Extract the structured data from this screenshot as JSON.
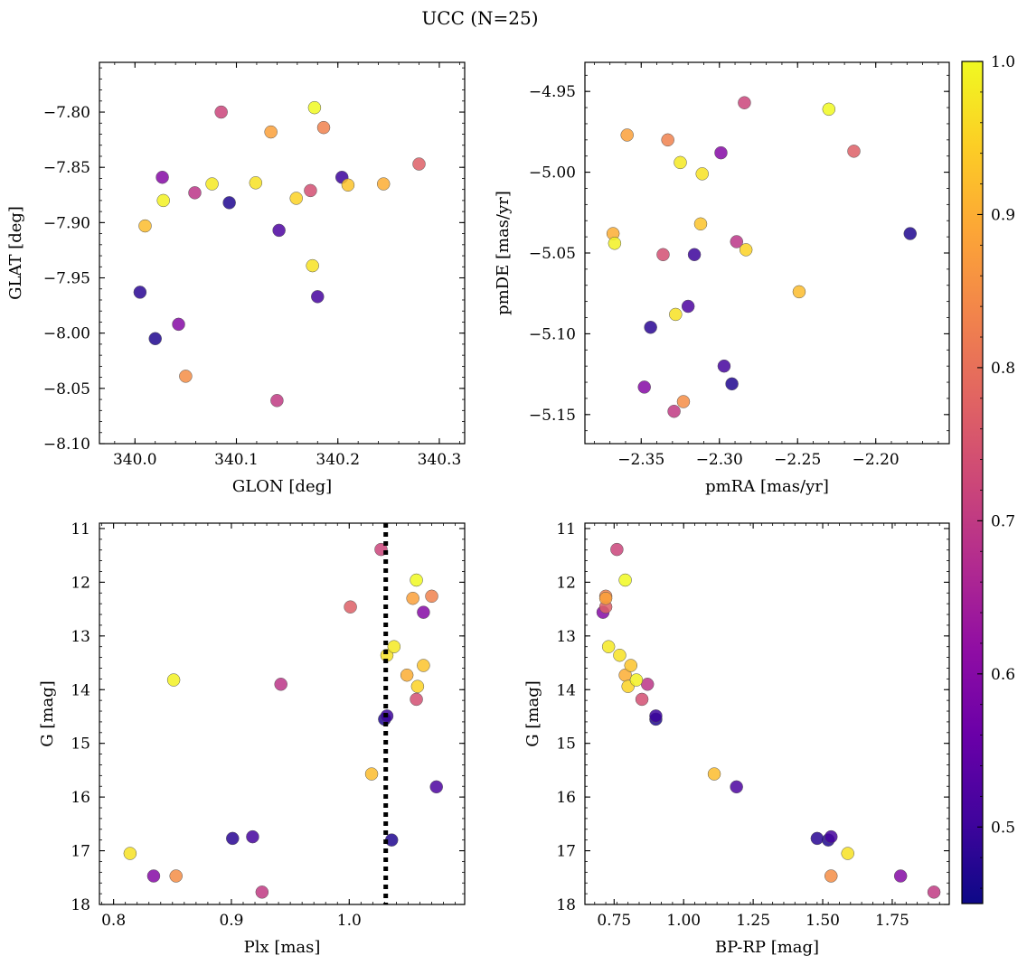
{
  "figure": {
    "title": "UCC (N=25)",
    "colormap": [
      "#0d0887",
      "#41049d",
      "#6a00a8",
      "#8f0da4",
      "#b12a90",
      "#cc4778",
      "#e16462",
      "#f2844b",
      "#fca636",
      "#fcce25",
      "#f0f921"
    ],
    "colorbar": {
      "range": [
        0.45,
        1.0
      ],
      "ticks": [
        "0.5",
        "0.6",
        "0.7",
        "0.8",
        "0.9",
        "1.0"
      ]
    }
  },
  "chart_data": [
    {
      "type": "scatter",
      "name": "glon-glat",
      "xlabel": "GLON [deg]",
      "ylabel": "GLAT [deg]",
      "xlim": [
        339.965,
        340.325
      ],
      "ylim": [
        -8.1,
        -7.755
      ],
      "xticks": [
        "340.0",
        "340.1",
        "340.2",
        "340.3"
      ],
      "yticks": [
        "-7.80",
        "-7.85",
        "-7.90",
        "-7.95",
        "-8.00",
        "-8.05",
        "-8.10"
      ],
      "x": [
        340.085,
        340.177,
        340.134,
        340.186,
        340.28,
        340.027,
        340.076,
        340.119,
        340.21,
        340.245,
        340.028,
        340.059,
        340.159,
        340.173,
        340.204,
        340.093,
        340.01,
        340.142,
        340.175,
        340.005,
        340.18,
        340.02,
        340.043,
        340.05,
        340.14
      ],
      "y": [
        -7.8,
        -7.796,
        -7.818,
        -7.814,
        -7.847,
        -7.859,
        -7.865,
        -7.864,
        -7.866,
        -7.865,
        -7.88,
        -7.873,
        -7.878,
        -7.871,
        -7.859,
        -7.882,
        -7.903,
        -7.907,
        -7.939,
        -7.963,
        -7.967,
        -8.005,
        -7.992,
        -8.039,
        -8.061
      ]
    },
    {
      "type": "scatter",
      "name": "pm",
      "xlabel": "pmRA [mas/yr]",
      "ylabel": "pmDE [mas/yr]",
      "xlim": [
        -2.386,
        -2.153
      ],
      "ylim": [
        -5.168,
        -4.932
      ],
      "xticks": [
        "-2.35",
        "-2.30",
        "-2.25",
        "-2.20"
      ],
      "yticks": [
        "-4.95",
        "-5.00",
        "-5.05",
        "-5.10",
        "-5.15"
      ],
      "x": [
        -2.284,
        -2.23,
        -2.359,
        -2.333,
        -2.214,
        -2.299,
        -2.325,
        -2.311,
        -2.312,
        -2.368,
        -2.367,
        -2.289,
        -2.283,
        -2.336,
        -2.316,
        -2.178,
        -2.249,
        -2.32,
        -2.328,
        -2.344,
        -2.297,
        -2.292,
        -2.348,
        -2.323,
        -2.329
      ],
      "y": [
        -4.957,
        -4.961,
        -4.977,
        -4.98,
        -4.987,
        -4.988,
        -4.994,
        -5.001,
        -5.032,
        -5.038,
        -5.044,
        -5.043,
        -5.048,
        -5.051,
        -5.051,
        -5.038,
        -5.074,
        -5.083,
        -5.088,
        -5.096,
        -5.12,
        -5.131,
        -5.133,
        -5.142,
        -5.148
      ]
    },
    {
      "type": "scatter",
      "name": "plx-g",
      "xlabel": "Plx [mas]",
      "ylabel": "G [mag]",
      "xlim": [
        0.788,
        1.098
      ],
      "ylim": [
        18.0,
        10.9
      ],
      "xticks": [
        "0.8",
        "0.9",
        "1.0"
      ],
      "yticks": [
        "11",
        "12",
        "13",
        "14",
        "15",
        "16",
        "17",
        "18"
      ],
      "vline": 1.031,
      "x": [
        1.027,
        1.057,
        1.054,
        1.07,
        1.001,
        1.063,
        1.038,
        1.032,
        1.063,
        1.049,
        0.851,
        0.942,
        1.058,
        1.057,
        1.032,
        1.03,
        1.019,
        1.074,
        0.814,
        0.901,
        0.918,
        1.036,
        0.834,
        0.853,
        0.926
      ],
      "y": [
        11.39,
        11.96,
        12.3,
        12.26,
        12.46,
        12.56,
        13.2,
        13.36,
        13.55,
        13.73,
        13.82,
        13.9,
        13.94,
        14.18,
        14.49,
        14.55,
        15.57,
        15.81,
        17.05,
        16.77,
        16.74,
        16.8,
        17.47,
        17.47,
        17.77
      ]
    },
    {
      "type": "scatter",
      "name": "color-magnitude",
      "xlabel": "BP-RP [mag]",
      "ylabel": "G [mag]",
      "xlim": [
        0.645,
        1.955
      ],
      "ylim": [
        18.0,
        10.9
      ],
      "xticks": [
        "0.75",
        "1.00",
        "1.25",
        "1.50",
        "1.75"
      ],
      "yticks": [
        "11",
        "12",
        "13",
        "14",
        "15",
        "16",
        "17",
        "18"
      ],
      "x": [
        0.76,
        0.79,
        0.72,
        0.72,
        0.72,
        0.71,
        0.73,
        0.77,
        0.81,
        0.79,
        0.83,
        0.87,
        0.8,
        0.85,
        0.9,
        0.9,
        1.11,
        1.19,
        1.59,
        1.48,
        1.53,
        1.52,
        1.78,
        1.53,
        1.9
      ],
      "y": [
        11.39,
        11.96,
        12.3,
        12.26,
        12.46,
        12.56,
        13.2,
        13.36,
        13.55,
        13.73,
        13.82,
        13.9,
        13.94,
        14.18,
        14.49,
        14.55,
        15.57,
        15.81,
        17.05,
        16.77,
        16.74,
        16.8,
        17.47,
        17.47,
        17.77
      ]
    }
  ],
  "membership": [
    0.72,
    1.0,
    0.88,
    0.83,
    0.77,
    0.6,
    0.98,
    0.97,
    0.93,
    0.9,
    0.99,
    0.69,
    0.95,
    0.74,
    0.5,
    0.47,
    0.92,
    0.52,
    0.97,
    0.48,
    0.51,
    0.47,
    0.6,
    0.85,
    0.7
  ]
}
